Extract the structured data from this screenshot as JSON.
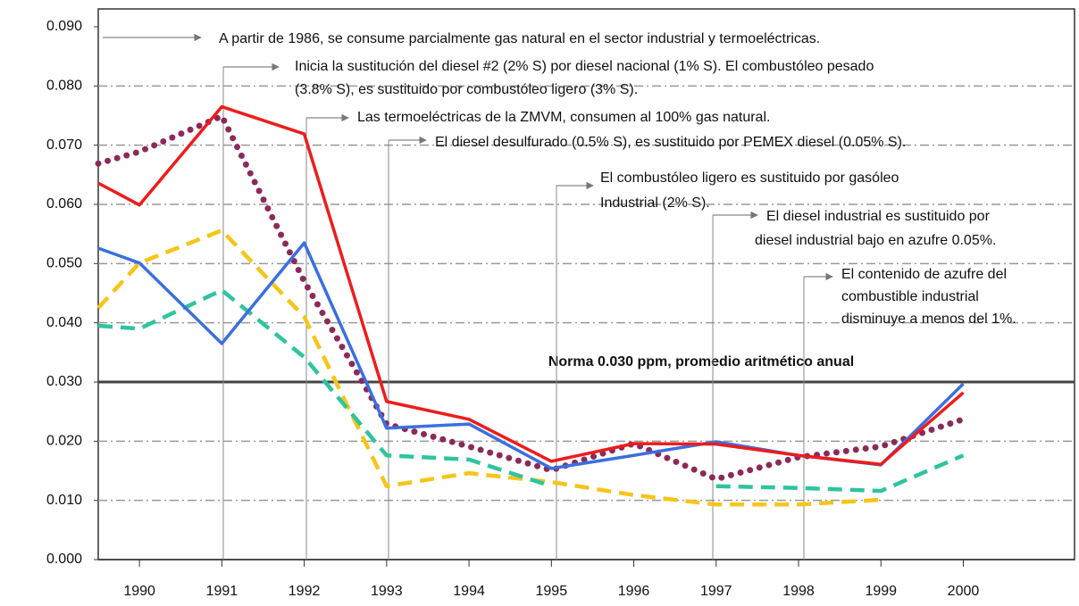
{
  "chart_data": {
    "type": "line",
    "x": [
      1989.5,
      1990,
      1991,
      1992,
      1993,
      1994,
      1995,
      1996,
      1997,
      1998,
      1999,
      2000
    ],
    "xlim": [
      1989.5,
      2001.35
    ],
    "xticks": [
      1990,
      1991,
      1992,
      1993,
      1994,
      1995,
      1996,
      1997,
      1998,
      1999,
      2000
    ],
    "ylim": [
      0,
      0.09
    ],
    "yticks": [
      {
        "value": 0,
        "label": "0.000"
      },
      {
        "value": 0.01,
        "label": "0.010"
      },
      {
        "value": 0.02,
        "label": "0.020"
      },
      {
        "value": 0.03,
        "label": "0.030"
      },
      {
        "value": 0.04,
        "label": "0.040"
      },
      {
        "value": 0.05,
        "label": "0.050"
      },
      {
        "value": 0.06,
        "label": "0.060"
      },
      {
        "value": 0.07,
        "label": "0.070"
      },
      {
        "value": 0.08,
        "label": "0.080"
      },
      {
        "value": 0.09,
        "label": "0.090"
      }
    ],
    "grid": true,
    "series": [
      {
        "color": "#8b2a5a",
        "dash": "dotted",
        "values": [
          0.0669,
          0.0689,
          0.0749,
          0.047,
          0.0229,
          0.0191,
          0.0151,
          0.0196,
          0.0136,
          0.0173,
          0.0191,
          0.0237
        ]
      },
      {
        "color": "#f5c518",
        "dash": "dashed",
        "values": [
          0.0425,
          0.0501,
          0.0556,
          0.041,
          0.0124,
          0.0146,
          0.0131,
          0.0109,
          0.0093,
          0.0093,
          0.0101,
          null
        ]
      },
      {
        "color": "#2ec4a0",
        "dash": "dashed",
        "values": [
          0.0395,
          0.039,
          0.0455,
          0.0342,
          0.0176,
          0.0169,
          0.0124,
          null,
          0.0124,
          0.0121,
          0.0116,
          0.0176
        ]
      },
      {
        "color": "#3b6fe0",
        "dash": "solid",
        "values": [
          0.0526,
          0.0501,
          0.0365,
          0.0535,
          0.0222,
          0.0229,
          0.0154,
          0.0176,
          0.0199,
          0.0176,
          0.016,
          0.0297
        ]
      },
      {
        "color": "#ee1c1c",
        "dash": "solid",
        "values": [
          0.0636,
          0.0599,
          0.0765,
          0.0719,
          0.0267,
          0.0237,
          0.0166,
          0.0196,
          0.0195,
          0.0176,
          0.0161,
          0.0282
        ]
      }
    ],
    "norm": {
      "value": 0.03,
      "label": "Norma 0.030 ppm,  promedio aritmético anual"
    },
    "annotations": [
      [
        "A partir de 1986, se consume parcialmente gas natural en el sector industrial y termoeléctricas."
      ],
      [
        "Inicia la sustitución del diesel #2 (2% S) por diesel nacional (1% S). El combustóleo pesado",
        "(3.8% S), es sustituido por combustóleo ligero (3% S)."
      ],
      [
        "Las  termoeléctricas de la ZMVM, consumen al 100% gas natural."
      ],
      [
        "El diesel desulfurado (0.5% S), es sustituido por PEMEX diesel (0.05% S)."
      ],
      [
        "El combustóleo ligero es sustituido por gasóleo",
        "Industrial (2% S)."
      ],
      [
        "El diesel industrial es sustituido por",
        "diesel industrial bajo en azufre 0.05%."
      ],
      [
        "El contenido de azufre del",
        "combustible industrial",
        "disminuye a menos del 1%."
      ]
    ]
  }
}
